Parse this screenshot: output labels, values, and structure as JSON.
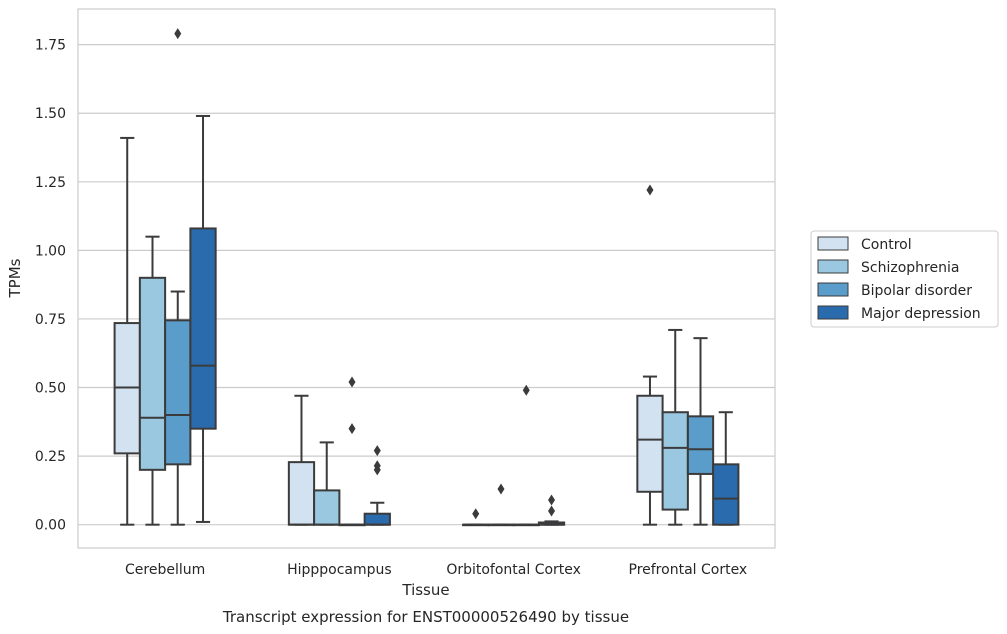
{
  "chart_data": {
    "type": "box",
    "title": "",
    "caption": "Transcript expression for ENST00000526490 by tissue",
    "xlabel": "Tissue",
    "ylabel": "TPMs",
    "ylim": [
      -0.085,
      1.88
    ],
    "yticks": [
      "0.00",
      "0.25",
      "0.50",
      "0.75",
      "1.00",
      "1.25",
      "1.50",
      "1.75"
    ],
    "ytick_values": [
      0,
      0.25,
      0.5,
      0.75,
      1.0,
      1.25,
      1.5,
      1.75
    ],
    "grid": true,
    "legend_position": "right",
    "categories": [
      "Cerebellum",
      "Hipppocampus",
      "Orbitofontal Cortex",
      "Prefrontal Cortex"
    ],
    "series": [
      {
        "name": "Control",
        "color": "#d2e2f1",
        "boxes": [
          {
            "whislo": 0.0,
            "q1": 0.26,
            "median": 0.5,
            "q3": 0.735,
            "whishi": 1.41,
            "fliers": []
          },
          {
            "whislo": 0.0,
            "q1": 0.0,
            "median": 0.0,
            "q3": 0.228,
            "whishi": 0.47,
            "fliers": []
          },
          {
            "whislo": 0.0,
            "q1": 0.0,
            "median": 0.0,
            "q3": 0.0,
            "whishi": 0.0,
            "fliers": [
              0.04
            ]
          },
          {
            "whislo": 0.0,
            "q1": 0.12,
            "median": 0.31,
            "q3": 0.47,
            "whishi": 0.54,
            "fliers": [
              1.22
            ]
          }
        ]
      },
      {
        "name": "Schizophrenia",
        "color": "#9ac8e0",
        "boxes": [
          {
            "whislo": 0.0,
            "q1": 0.2,
            "median": 0.39,
            "q3": 0.9,
            "whishi": 1.05,
            "fliers": []
          },
          {
            "whislo": 0.0,
            "q1": 0.0,
            "median": 0.0,
            "q3": 0.125,
            "whishi": 0.3,
            "fliers": []
          },
          {
            "whislo": 0.0,
            "q1": 0.0,
            "median": 0.0,
            "q3": 0.0,
            "whishi": 0.0,
            "fliers": [
              0.13
            ]
          },
          {
            "whislo": 0.0,
            "q1": 0.055,
            "median": 0.28,
            "q3": 0.41,
            "whishi": 0.71,
            "fliers": []
          }
        ]
      },
      {
        "name": "Bipolar disorder",
        "color": "#5a9dca",
        "boxes": [
          {
            "whislo": 0.0,
            "q1": 0.22,
            "median": 0.4,
            "q3": 0.745,
            "whishi": 0.85,
            "fliers": [
              1.79
            ]
          },
          {
            "whislo": 0.0,
            "q1": 0.0,
            "median": 0.0,
            "q3": 0.0,
            "whishi": 0.0,
            "fliers": [
              0.52,
              0.35
            ]
          },
          {
            "whislo": 0.0,
            "q1": 0.0,
            "median": 0.0,
            "q3": 0.0,
            "whishi": 0.0,
            "fliers": [
              0.49
            ]
          },
          {
            "whislo": 0.0,
            "q1": 0.185,
            "median": 0.275,
            "q3": 0.395,
            "whishi": 0.68,
            "fliers": []
          }
        ]
      },
      {
        "name": "Major depression",
        "color": "#2a6bad",
        "boxes": [
          {
            "whislo": 0.01,
            "q1": 0.35,
            "median": 0.58,
            "q3": 1.08,
            "whishi": 1.49,
            "fliers": []
          },
          {
            "whislo": 0.0,
            "q1": 0.0,
            "median": 0.0,
            "q3": 0.04,
            "whishi": 0.08,
            "fliers": [
              0.27,
              0.215,
              0.2
            ]
          },
          {
            "whislo": 0.0,
            "q1": 0.0,
            "median": 0.0,
            "q3": 0.008,
            "whishi": 0.012,
            "fliers": [
              0.09,
              0.05
            ]
          },
          {
            "whislo": 0.0,
            "q1": 0.0,
            "median": 0.095,
            "q3": 0.22,
            "whishi": 0.41,
            "fliers": []
          }
        ]
      }
    ]
  }
}
